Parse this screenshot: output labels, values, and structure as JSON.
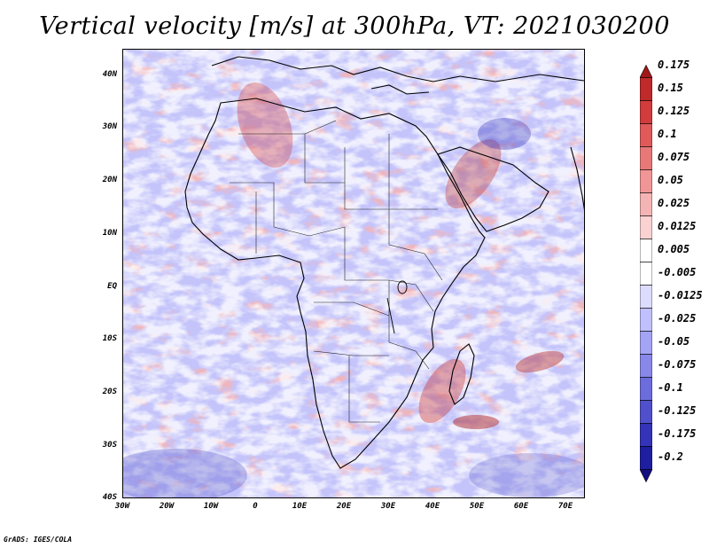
{
  "title": "Vertical velocity [m/s] at 300hPa, VT: 2021030200",
  "footer": "GrADS: IGES/COLA",
  "axes": {
    "lat_labels": [
      "40N",
      "30N",
      "20N",
      "10N",
      "EQ",
      "10S",
      "20S",
      "30S",
      "40S"
    ],
    "lon_labels": [
      "30W",
      "20W",
      "10W",
      "0",
      "10E",
      "20E",
      "30E",
      "40E",
      "50E",
      "60E",
      "70E"
    ]
  },
  "colorbar": {
    "levels": [
      "0.175",
      "0.15",
      "0.125",
      "0.1",
      "0.075",
      "0.05",
      "0.025",
      "0.0125",
      "0.005",
      "-0.005",
      "-0.0125",
      "-0.025",
      "-0.05",
      "-0.075",
      "-0.1",
      "-0.125",
      "-0.175",
      "-0.2"
    ],
    "colors": [
      "#a01818",
      "#bf2a2a",
      "#d23c3c",
      "#e05a5a",
      "#e87878",
      "#f09696",
      "#f5b4b4",
      "#fad2d2",
      "#ffffff",
      "#ffffff",
      "#dcdcff",
      "#c0c0ff",
      "#a4a4f5",
      "#8888ea",
      "#6c6cdc",
      "#5050cc",
      "#3434b8",
      "#1e1ea0",
      "#120e80"
    ],
    "top_color": "#a01818",
    "bottom_color": "#120e80"
  }
}
